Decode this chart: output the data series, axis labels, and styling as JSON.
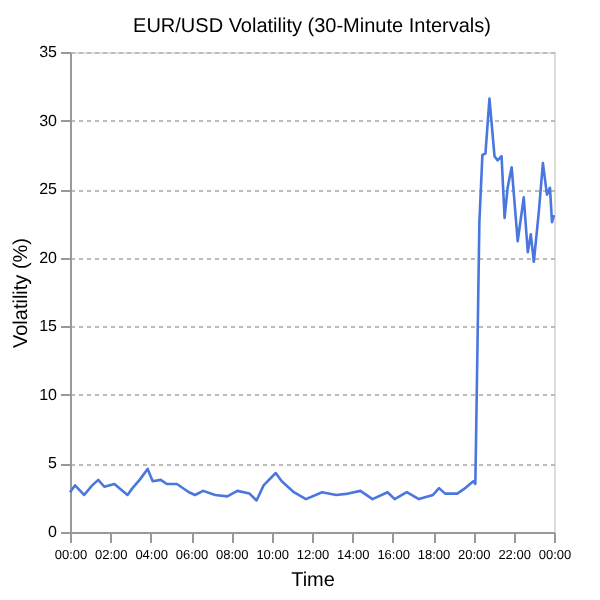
{
  "chart_data": {
    "type": "line",
    "title": "EUR/USD Volatility (30-Minute Intervals)",
    "xlabel": "Time",
    "ylabel": "Volatility (%)",
    "series": [
      {
        "color": "#4a76e0",
        "x": [
          0,
          0.25,
          0.7,
          1.1,
          1.4,
          1.7,
          2.2,
          2.85,
          3.1,
          3.45,
          3.85,
          4.1,
          4.5,
          4.8,
          5.3,
          5.9,
          6.2,
          6.6,
          7.2,
          7.8,
          8.3,
          8.9,
          9.25,
          9.6,
          10.2,
          10.5,
          11.1,
          11.7,
          12.5,
          13.2,
          13.8,
          14.4,
          15,
          15.75,
          16.1,
          16.7,
          17.3,
          18.0,
          18.3,
          18.6,
          19.2,
          19.6,
          20.0,
          20.1,
          20.3,
          20.45,
          20.6,
          20.8,
          21.05,
          21.2,
          21.4,
          21.55,
          21.7,
          21.9,
          22.2,
          22.5,
          22.7,
          22.85,
          23.0,
          23.25,
          23.45,
          23.65,
          23.8,
          23.9,
          24.0
        ],
        "values": [
          2.9,
          3.4,
          2.7,
          3.4,
          3.8,
          3.3,
          3.5,
          2.7,
          3.2,
          3.8,
          4.6,
          3.7,
          3.8,
          3.5,
          3.5,
          2.9,
          2.7,
          3.0,
          2.7,
          2.6,
          3.0,
          2.8,
          2.3,
          3.4,
          4.3,
          3.7,
          2.9,
          2.4,
          2.9,
          2.7,
          2.8,
          3.0,
          2.4,
          2.9,
          2.4,
          2.9,
          2.4,
          2.7,
          3.2,
          2.8,
          2.8,
          3.2,
          3.7,
          3.5,
          22.6,
          27.5,
          27.6,
          31.6,
          27.4,
          27.1,
          27.4,
          22.9,
          25.1,
          26.6,
          21.2,
          24.4,
          20.4,
          21.7,
          19.7,
          23.4,
          26.9,
          24.6,
          25.1,
          22.6,
          23.1
        ]
      }
    ],
    "xlim": [
      0,
      24
    ],
    "xticks": [
      {
        "value": 0,
        "label": "00:00"
      },
      {
        "value": 2,
        "label": "02:00"
      },
      {
        "value": 4,
        "label": "04:00"
      },
      {
        "value": 6,
        "label": "06:00"
      },
      {
        "value": 8,
        "label": "08:00"
      },
      {
        "value": 10,
        "label": "10:00"
      },
      {
        "value": 12,
        "label": "12:00"
      },
      {
        "value": 14,
        "label": "14:00"
      },
      {
        "value": 16,
        "label": "16:00"
      },
      {
        "value": 18,
        "label": "18:00"
      },
      {
        "value": 20,
        "label": "20:00"
      },
      {
        "value": 22,
        "label": "22:00"
      },
      {
        "value": 24,
        "label": "00:00"
      }
    ],
    "ylim": [
      0,
      35
    ],
    "yticks": [
      0,
      5,
      10,
      15,
      20,
      25,
      30,
      35
    ],
    "grid": "y",
    "marker": "none",
    "line_style": "solid"
  }
}
